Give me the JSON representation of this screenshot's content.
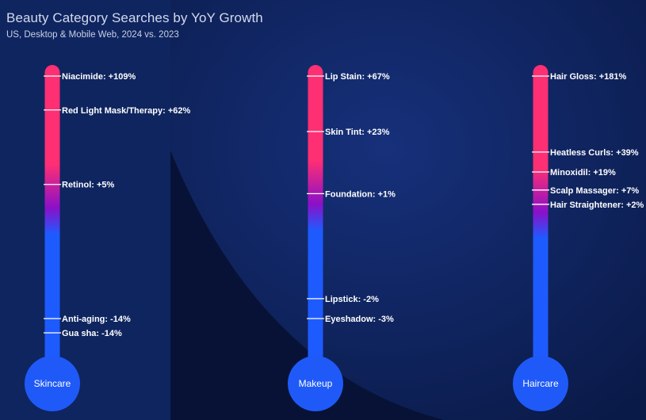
{
  "title": "Beauty Category Searches by YoY Growth",
  "subtitle": "US, Desktop & Mobile Web,  2024 vs. 2023",
  "colors": {
    "hot": "#ff2f73",
    "mid": "#8a10c8",
    "cool": "#1e5bff",
    "bulb": "#1f5af8",
    "background": "#0b1b4a"
  },
  "chart_data": {
    "type": "thermometer",
    "thermometers": [
      {
        "name": "Skincare",
        "items": [
          {
            "label": "Niacimide: +109%",
            "value": 109
          },
          {
            "label": "Red Light Mask/Therapy: +62%",
            "value": 62
          },
          {
            "label": "Retinol: +5%",
            "value": 5
          },
          {
            "label": "Anti-aging: -14%",
            "value": -14
          },
          {
            "label": "Gua sha: -14%",
            "value": -14
          }
        ]
      },
      {
        "name": "Makeup",
        "items": [
          {
            "label": "Lip Stain: +67%",
            "value": 67
          },
          {
            "label": "Skin Tint: +23%",
            "value": 23
          },
          {
            "label": "Foundation: +1%",
            "value": 1
          },
          {
            "label": "Lipstick: -2%",
            "value": -2
          },
          {
            "label": "Eyeshadow: -3%",
            "value": -3
          }
        ]
      },
      {
        "name": "Haircare",
        "items": [
          {
            "label": "Hair Gloss: +181%",
            "value": 181
          },
          {
            "label": "Heatless Curls: +39%",
            "value": 39
          },
          {
            "label": "Minoxidil: +19%",
            "value": 19
          },
          {
            "label": "Scalp Massager: +7%",
            "value": 7
          },
          {
            "label": "Hair Straightener: +2%",
            "value": 2
          }
        ]
      }
    ]
  }
}
